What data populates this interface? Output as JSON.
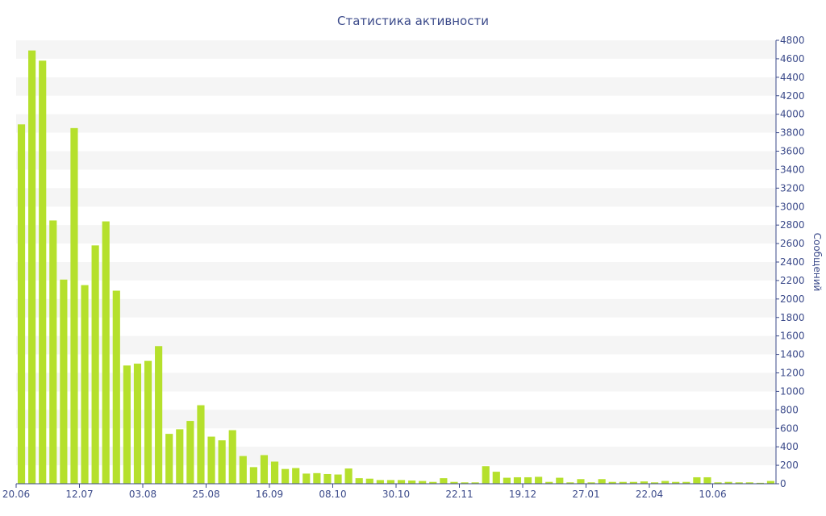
{
  "chart_data": {
    "type": "bar",
    "title": "Статистика активности",
    "xlabel": "",
    "ylabel": "Сообщений",
    "ylim": [
      0,
      4800
    ],
    "yticks": [
      0,
      200,
      400,
      600,
      800,
      1000,
      1200,
      1400,
      1600,
      1800,
      2000,
      2200,
      2400,
      2600,
      2800,
      3000,
      3200,
      3400,
      3600,
      3800,
      4000,
      4200,
      4400,
      4600,
      4800
    ],
    "x_tick_labels": [
      {
        "index": 0,
        "label": "20.06"
      },
      {
        "index": 6,
        "label": "12.07"
      },
      {
        "index": 12,
        "label": "03.08"
      },
      {
        "index": 18,
        "label": "25.08"
      },
      {
        "index": 24,
        "label": "16.09"
      },
      {
        "index": 30,
        "label": "08.10"
      },
      {
        "index": 36,
        "label": "30.10"
      },
      {
        "index": 42,
        "label": "22.11"
      },
      {
        "index": 48,
        "label": "19.12"
      },
      {
        "index": 54,
        "label": "27.01"
      },
      {
        "index": 60,
        "label": "22.04"
      },
      {
        "index": 66,
        "label": "10.06"
      }
    ],
    "values": [
      3890,
      4690,
      4580,
      2850,
      2210,
      3850,
      2150,
      2580,
      2840,
      2090,
      1280,
      1300,
      1330,
      1490,
      540,
      590,
      680,
      850,
      510,
      470,
      580,
      300,
      180,
      310,
      240,
      160,
      170,
      110,
      115,
      105,
      100,
      165,
      60,
      55,
      40,
      40,
      40,
      35,
      30,
      20,
      60,
      20,
      15,
      15,
      190,
      130,
      65,
      70,
      70,
      75,
      20,
      65,
      15,
      50,
      15,
      50,
      20,
      20,
      20,
      25,
      15,
      30,
      20,
      20,
      70,
      70,
      15,
      20,
      15,
      15,
      10,
      30
    ],
    "grid": true,
    "legend": "none",
    "colors": {
      "bar": "#b5e02c",
      "band": "#f5f5f5",
      "axis": "#3b4a8a",
      "text": "#3b4a8a"
    }
  }
}
